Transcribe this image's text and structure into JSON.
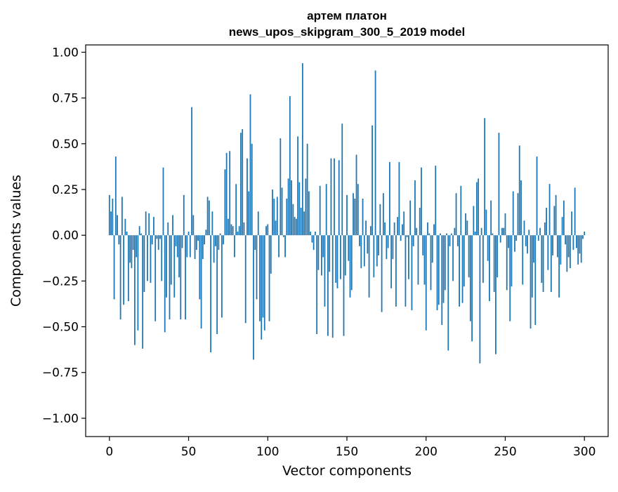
{
  "chart_data": {
    "type": "bar",
    "title": [
      "артем платон",
      "news_upos_skipgram_300_5_2019 model"
    ],
    "xlabel": "Vector components",
    "ylabel": "Components values",
    "xlim": [
      -15,
      315
    ],
    "ylim": [
      -1.1,
      1.04
    ],
    "xticks": [
      0,
      50,
      100,
      150,
      200,
      250,
      300
    ],
    "xtick_labels": [
      "0",
      "50",
      "100",
      "150",
      "200",
      "250",
      "300"
    ],
    "yticks": [
      1.0,
      0.75,
      0.5,
      0.25,
      0.0,
      -0.25,
      -0.5,
      -0.75,
      -1.0
    ],
    "ytick_labels": [
      "1.00",
      "0.75",
      "0.50",
      "0.25",
      "0.00",
      "−0.25",
      "−0.50",
      "−0.75",
      "−1.00"
    ],
    "grid": false,
    "bar_color": "#1f77b4",
    "series": [
      {
        "x_start": 0,
        "values": [
          0.22,
          0.13,
          0.2,
          -0.35,
          0.43,
          0.11,
          -0.05,
          -0.46,
          0.21,
          -0.38,
          0.09,
          0.02,
          -0.36,
          -0.15,
          -0.18,
          -0.08,
          -0.6,
          -0.12,
          -0.52,
          0.05,
          0.01,
          -0.62,
          -0.31,
          0.13,
          -0.25,
          0.12,
          -0.26,
          -0.05,
          0.1,
          -0.47,
          -0.02,
          -0.08,
          -0.02,
          -0.25,
          0.37,
          -0.53,
          -0.34,
          0.07,
          -0.46,
          -0.27,
          0.11,
          -0.34,
          -0.06,
          -0.12,
          -0.23,
          -0.46,
          -0.07,
          0.22,
          -0.46,
          -0.12,
          0.02,
          -0.12,
          0.7,
          0.11,
          -0.13,
          -0.08,
          -0.03,
          -0.35,
          -0.51,
          -0.13,
          -0.05,
          0.03,
          0.21,
          0.19,
          -0.64,
          0.13,
          -0.15,
          -0.06,
          -0.54,
          -0.08,
          0.01,
          -0.45,
          -0.05,
          0.36,
          0.45,
          0.09,
          0.46,
          0.06,
          0.05,
          -0.12,
          0.28,
          0.02,
          0.05,
          0.56,
          0.58,
          0.07,
          -0.48,
          0.42,
          0.24,
          0.77,
          0.5,
          -0.68,
          -0.08,
          -0.35,
          0.13,
          -0.47,
          -0.57,
          -0.45,
          -0.52,
          0.05,
          0.06,
          -0.47,
          -0.21,
          0.25,
          0.2,
          0.08,
          0.21,
          -0.12,
          0.53,
          0.26,
          -0.01,
          -0.12,
          0.2,
          0.31,
          0.76,
          0.3,
          0.17,
          0.1,
          0.09,
          0.54,
          0.29,
          0.15,
          0.94,
          0.13,
          0.31,
          0.5,
          0.24,
          0.02,
          -0.04,
          -0.08,
          0.02,
          -0.54,
          -0.19,
          0.27,
          -0.22,
          -0.12,
          -0.39,
          0.28,
          -0.55,
          -0.2,
          0.42,
          -0.56,
          0.42,
          -0.26,
          -0.29,
          0.41,
          -0.24,
          0.61,
          -0.55,
          -0.22,
          0.22,
          -0.14,
          -0.34,
          -0.3,
          0.23,
          0.2,
          0.44,
          0.28,
          -0.06,
          -0.18,
          0.2,
          -0.17,
          0.08,
          -0.1,
          -0.34,
          0.05,
          0.6,
          -0.23,
          0.9,
          -0.17,
          -0.11,
          0.17,
          -0.42,
          0.23,
          0.07,
          -0.13,
          -0.07,
          0.4,
          -0.29,
          -0.13,
          0.07,
          -0.39,
          0.1,
          0.4,
          -0.03,
          0.06,
          0.13,
          -0.39,
          -0.01,
          -0.24,
          0.19,
          -0.41,
          -0.06,
          0.3,
          0.04,
          -0.27,
          0.15,
          0.37,
          -0.11,
          -0.27,
          -0.52,
          0.07,
          0.01,
          -0.3,
          -0.15,
          0.06,
          0.38,
          -0.41,
          -0.38,
          0.01,
          -0.49,
          -0.37,
          -0.3,
          0.01,
          -0.63,
          -0.06,
          0.01,
          -0.25,
          0.04,
          0.23,
          -0.06,
          -0.39,
          0.27,
          -0.37,
          -0.28,
          0.12,
          0.08,
          -0.23,
          -0.47,
          -0.58,
          0.16,
          0.02,
          0.29,
          0.31,
          -0.7,
          0.04,
          -0.26,
          0.64,
          0.14,
          -0.14,
          -0.36,
          0.19,
          0.01,
          -0.31,
          -0.65,
          -0.23,
          0.56,
          -0.04,
          0.04,
          0.04,
          0.12,
          -0.3,
          -0.07,
          -0.47,
          -0.28,
          0.24,
          -0.09,
          -0.03,
          0.23,
          0.49,
          0.3,
          -0.27,
          0.08,
          -0.06,
          -0.1,
          0.03,
          -0.51,
          -0.34,
          -0.15,
          -0.49,
          0.43,
          -0.03,
          0.04,
          -0.26,
          -0.31,
          0.07,
          0.15,
          -0.19,
          0.28,
          -0.31,
          -0.11,
          0.16,
          0.22,
          -0.12,
          -0.34,
          -0.16,
          0.1,
          0.19,
          -0.05,
          -0.2,
          -0.12,
          -0.18,
          0.13,
          -0.08,
          0.26,
          -0.07,
          -0.16,
          -0.1,
          -0.15,
          -0.02,
          0.02
        ]
      }
    ]
  }
}
